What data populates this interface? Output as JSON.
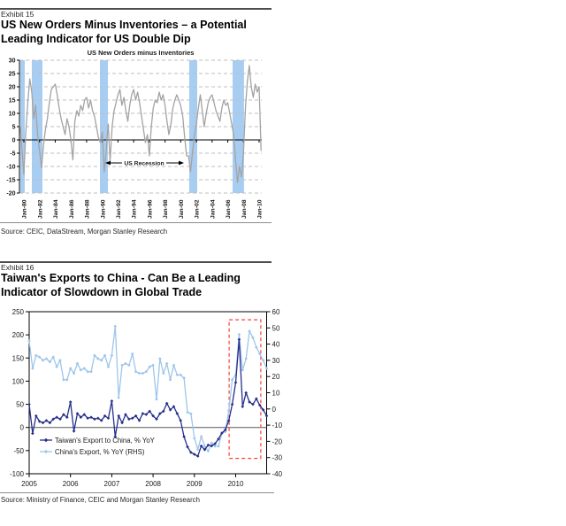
{
  "exhibit15": {
    "label": "Exhibit 15",
    "title_line1": "US New Orders Minus Inventories – a Potential",
    "title_line2": "Leading Indicator for US Double Dip",
    "source": "Source: CEIC, DataStream, Morgan Stanley Research"
  },
  "exhibit16": {
    "label": "Exhibit 16",
    "title_line1": "Taiwan's Exports to China - Can Be a Leading",
    "title_line2": "Indicator of Slowdown in Global Trade",
    "source": "Source: Ministry of Finance, CEIC and Morgan Stanley Research"
  },
  "chart_data": [
    {
      "type": "line",
      "title": "US New Orders minus Inventories",
      "ylim": [
        -20,
        30
      ],
      "y_tick_step": 5,
      "x_ticks": [
        "Jan-80",
        "Jan-82",
        "Jan-84",
        "Jan-86",
        "Jan-88",
        "Jan-90",
        "Jan-92",
        "Jan-94",
        "Jan-96",
        "Jan-98",
        "Jan-00",
        "Jan-02",
        "Jan-04",
        "Jan-06",
        "Jan-08",
        "Jan-10"
      ],
      "grid": "dashed-horizontal",
      "band_color": "#A8CDF2",
      "annotation": {
        "text": "US Recession",
        "style": "double-arrow-between-bands"
      },
      "recession_bands": [
        [
          1979.55,
          1980.11
        ],
        [
          1981.02,
          1982.37
        ],
        [
          1989.7,
          1990.71
        ],
        [
          2001.09,
          2002.11
        ],
        [
          2006.61,
          2008.07
        ]
      ],
      "x_start": 1979.5,
      "x_step": 0.25,
      "series": [
        {
          "name": "US New Orders minus Inventories",
          "color": "#A3A3A3",
          "values": [
            6,
            -3,
            -13,
            3,
            14,
            23,
            18,
            8,
            13,
            2,
            -4,
            -10.5,
            -2,
            4,
            8,
            14,
            19,
            20,
            21,
            17,
            12,
            8,
            5,
            2,
            8,
            5,
            0,
            -7.5,
            7,
            11,
            9,
            13,
            11,
            15,
            16,
            12,
            15,
            11,
            9,
            5,
            1,
            -1,
            3,
            -12,
            -4,
            6,
            -8,
            5,
            11,
            14,
            17,
            19,
            13,
            16,
            11,
            7,
            13,
            17,
            19,
            15,
            18,
            14,
            9,
            4,
            -1,
            2,
            -6,
            5,
            12,
            15,
            14,
            18,
            15,
            17,
            13,
            7,
            2,
            6,
            12,
            15,
            17,
            15,
            13,
            9,
            1,
            -6,
            -6,
            -12,
            -5,
            2,
            6,
            12,
            17,
            11,
            5,
            10,
            14,
            16,
            17,
            14,
            11,
            9,
            7,
            12,
            15,
            13,
            14,
            10,
            6,
            2,
            -8,
            -16,
            -10,
            -14,
            -5,
            12,
            22,
            28,
            20,
            16,
            21,
            18,
            20,
            -4
          ]
        }
      ]
    },
    {
      "type": "line",
      "title": "",
      "left_axis": {
        "ylim": [
          -100,
          250
        ],
        "ticks": [
          250,
          200,
          150,
          100,
          50,
          0,
          -50,
          -100
        ]
      },
      "right_axis": {
        "ylim": [
          -40,
          60
        ],
        "ticks": [
          60,
          50,
          40,
          30,
          20,
          10,
          0,
          -10,
          -20,
          -30,
          -40
        ]
      },
      "x_ticks": [
        "2005",
        "2006",
        "2007",
        "2008",
        "2009",
        "2010"
      ],
      "x_start_month": 0,
      "months_per_tick": 12,
      "red_box": {
        "start_month": 58.1,
        "end_month": 67.3,
        "top_rhs": 55,
        "bottom_rhs": -30.5,
        "color": "#F9423A"
      },
      "legend_position": "bottom-left-inside",
      "series": [
        {
          "name": "Taiwan's Export to China, % YoY",
          "axis": "left",
          "color": "#27308C",
          "marker": "diamond",
          "values": [
            50,
            -13,
            25,
            13,
            10,
            15,
            10,
            18,
            22,
            18,
            28,
            22,
            55,
            -8,
            30,
            22,
            28,
            20,
            22,
            18,
            20,
            15,
            25,
            20,
            57,
            -20,
            25,
            10,
            28,
            18,
            20,
            25,
            15,
            30,
            28,
            35,
            25,
            18,
            30,
            35,
            52,
            38,
            45,
            30,
            15,
            -20,
            -42,
            -54,
            -58,
            -62,
            -40,
            -48,
            -38,
            -40,
            -35,
            -25,
            -12,
            -5,
            15,
            50,
            97,
            190,
            45,
            75,
            55,
            50,
            62,
            48,
            38,
            25
          ]
        },
        {
          "name": "China's Export, % YoY (RHS)",
          "axis": "right",
          "color": "#9EC6EA",
          "marker": "diamond",
          "values": [
            42,
            25,
            33,
            32,
            30,
            31,
            29,
            32,
            26,
            30,
            18,
            18,
            25,
            22,
            28,
            24,
            25,
            23,
            23,
            33,
            31,
            30,
            33,
            26,
            33,
            51,
            7,
            27,
            28,
            27,
            34,
            23,
            22,
            22,
            23,
            26,
            27,
            6,
            31,
            22,
            28,
            18,
            27,
            21,
            21,
            19,
            -2,
            -3,
            -18,
            -25,
            -17,
            -23,
            -26,
            -21,
            -23,
            -23,
            -15,
            -14,
            -1,
            18,
            21,
            46,
            24,
            31,
            48,
            44,
            38,
            34,
            30,
            25
          ]
        }
      ]
    }
  ]
}
